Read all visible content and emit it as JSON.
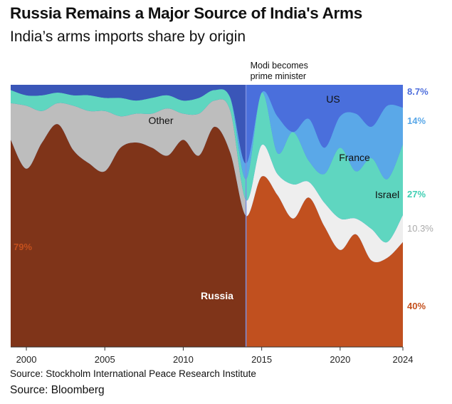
{
  "header": {
    "title": "Russia Remains a Major Source of India's Arms",
    "subtitle": "India’s arms imports share by origin"
  },
  "footer": {
    "source_line": "Source: Stockholm International Peace Research Institute",
    "source_credit": "Source: Bloomberg"
  },
  "colors": {
    "russia_before": "#7f3419",
    "russia_after": "#c1501f",
    "other": "#bdbdbd",
    "other_after": "#eeeeee",
    "israel": "#5fd6c0",
    "france": "#5aa8e8",
    "us": "#4a6fdc",
    "us_before": "#3a56b8",
    "divider": "#7a90e0",
    "label_russia": "#c4501d",
    "label_other": "#aaaaaa",
    "label_israel": "#3fcfb3",
    "label_france": "#5aa8e8",
    "label_us": "#4f6fdc"
  },
  "chart_data": {
    "type": "area",
    "stacked": true,
    "normalized_to": 100,
    "x": [
      1999,
      2000,
      2001,
      2002,
      2003,
      2004,
      2005,
      2006,
      2007,
      2008,
      2009,
      2010,
      2011,
      2012,
      2013,
      2014,
      2015,
      2016,
      2017,
      2018,
      2019,
      2020,
      2021,
      2022,
      2023,
      2024
    ],
    "xlim": [
      1999,
      2024
    ],
    "x_ticks": [
      2000,
      2005,
      2010,
      2015,
      2020,
      2024
    ],
    "ylim": [
      0,
      100
    ],
    "grid": false,
    "series": [
      {
        "name": "Russia",
        "values": [
          79,
          68,
          78,
          85,
          75,
          70,
          67,
          76,
          78,
          76,
          73,
          79,
          73,
          84,
          74,
          50,
          65,
          58,
          49,
          57,
          46,
          37,
          43,
          33,
          34,
          40
        ]
      },
      {
        "name": "Other",
        "values": [
          14,
          24,
          12,
          8,
          17,
          20,
          23,
          12,
          11,
          13,
          18,
          10,
          16,
          10,
          16,
          6,
          12,
          8,
          13,
          6,
          9,
          12,
          6,
          12,
          6,
          10.3
        ]
      },
      {
        "name": "Israel",
        "values": [
          5,
          4,
          6,
          4,
          4,
          6,
          5,
          7,
          5,
          6,
          5,
          5,
          6,
          4,
          5,
          8,
          20,
          8,
          20,
          8,
          11,
          27,
          18,
          27,
          24,
          27
        ]
      },
      {
        "name": "France",
        "values": [
          0,
          0,
          0,
          0,
          0,
          0,
          0,
          0,
          0,
          0,
          0,
          0,
          0,
          0,
          0,
          6,
          0,
          14,
          0,
          16,
          10,
          12,
          22,
          12,
          28,
          14
        ]
      },
      {
        "name": "US",
        "values": [
          2,
          4,
          4,
          3,
          4,
          4,
          5,
          5,
          6,
          5,
          4,
          6,
          5,
          2,
          5,
          30,
          3,
          12,
          18,
          13,
          24,
          12,
          11,
          16,
          8,
          8.7
        ]
      }
    ],
    "annotations": [
      {
        "text_lines": [
          "Modi becomes",
          "prime minister"
        ],
        "x": 2014
      }
    ],
    "series_labels": {
      "Russia": "Russia",
      "Other": "Other",
      "Israel": "Israel",
      "France": "France",
      "US": "US"
    },
    "start_labels": [
      {
        "series": "Russia",
        "text": "79%"
      }
    ],
    "end_labels": [
      {
        "series": "US",
        "text": "8.7%"
      },
      {
        "series": "France",
        "text": "14%"
      },
      {
        "series": "Israel",
        "text": "27%"
      },
      {
        "series": "Other",
        "text": "10.3%"
      },
      {
        "series": "Russia",
        "text": "40%"
      }
    ]
  }
}
